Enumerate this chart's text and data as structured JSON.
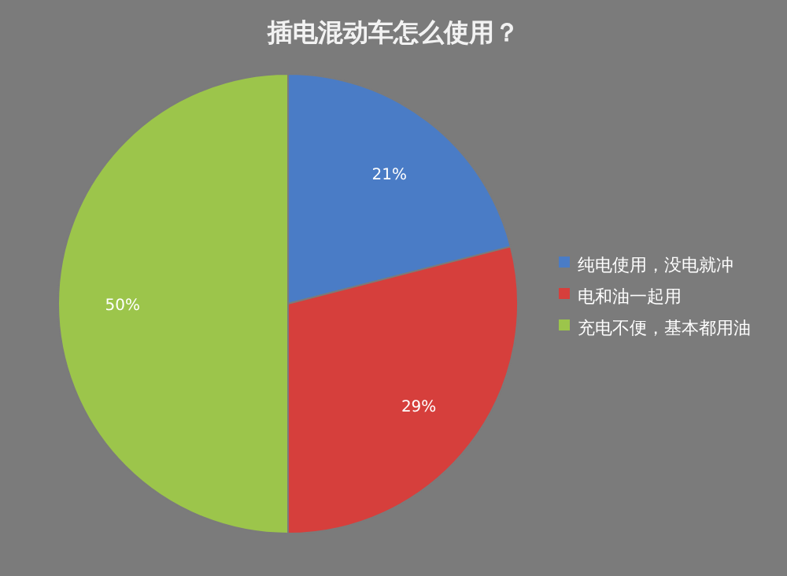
{
  "chart_data": {
    "type": "pie",
    "title": "插电混动车怎么使用？",
    "categories": [
      "纯电使用，没电就冲",
      "电和油一起用",
      "充电不便，基本都用油"
    ],
    "values": [
      21,
      29,
      50
    ],
    "value_labels": [
      "21%",
      "29%",
      "50%"
    ],
    "colors": [
      "#4a7cc6",
      "#d63f3c",
      "#9cc54b"
    ],
    "legend": "right"
  }
}
